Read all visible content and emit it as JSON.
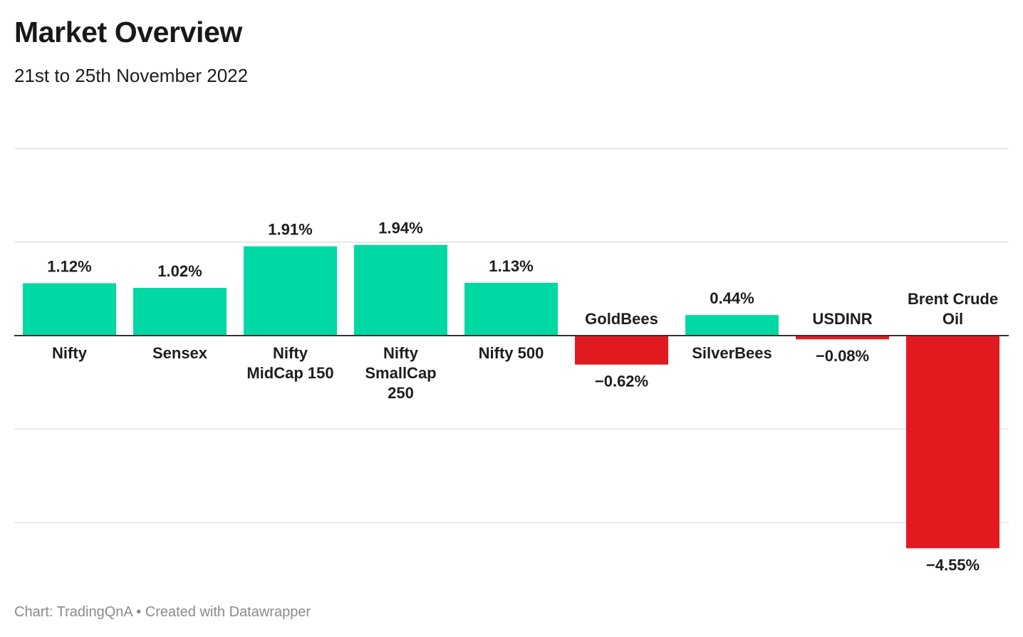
{
  "header": {
    "title": "Market Overview",
    "subtitle": "21st to 25th November 2022"
  },
  "footer": {
    "source": "Chart: TradingQnA • Created with Datawrapper"
  },
  "colors": {
    "positive": "#00d9a4",
    "negative": "#e11a1f",
    "grid": "#e2e2e2",
    "baseline": "#333333"
  },
  "chart_data": {
    "type": "bar",
    "categories": [
      [
        "Nifty"
      ],
      [
        "Sensex"
      ],
      [
        "Nifty",
        "MidCap 150"
      ],
      [
        "Nifty",
        "SmallCap",
        "250"
      ],
      [
        "Nifty 500"
      ],
      [
        "GoldBees"
      ],
      [
        "SilverBees"
      ],
      [
        "USDINR"
      ],
      [
        "Brent Crude",
        "Oil"
      ]
    ],
    "values": [
      1.12,
      1.02,
      1.91,
      1.94,
      1.13,
      -0.62,
      0.44,
      -0.08,
      -4.55
    ],
    "value_labels": [
      "1.12%",
      "1.02%",
      "1.91%",
      "1.94%",
      "1.13%",
      "−0.62%",
      "0.44%",
      "−0.08%",
      "−4.55%"
    ],
    "ylim": [
      -4.8,
      4
    ],
    "gridlines": [
      4,
      2,
      0,
      -2,
      -4
    ],
    "grid": true
  }
}
